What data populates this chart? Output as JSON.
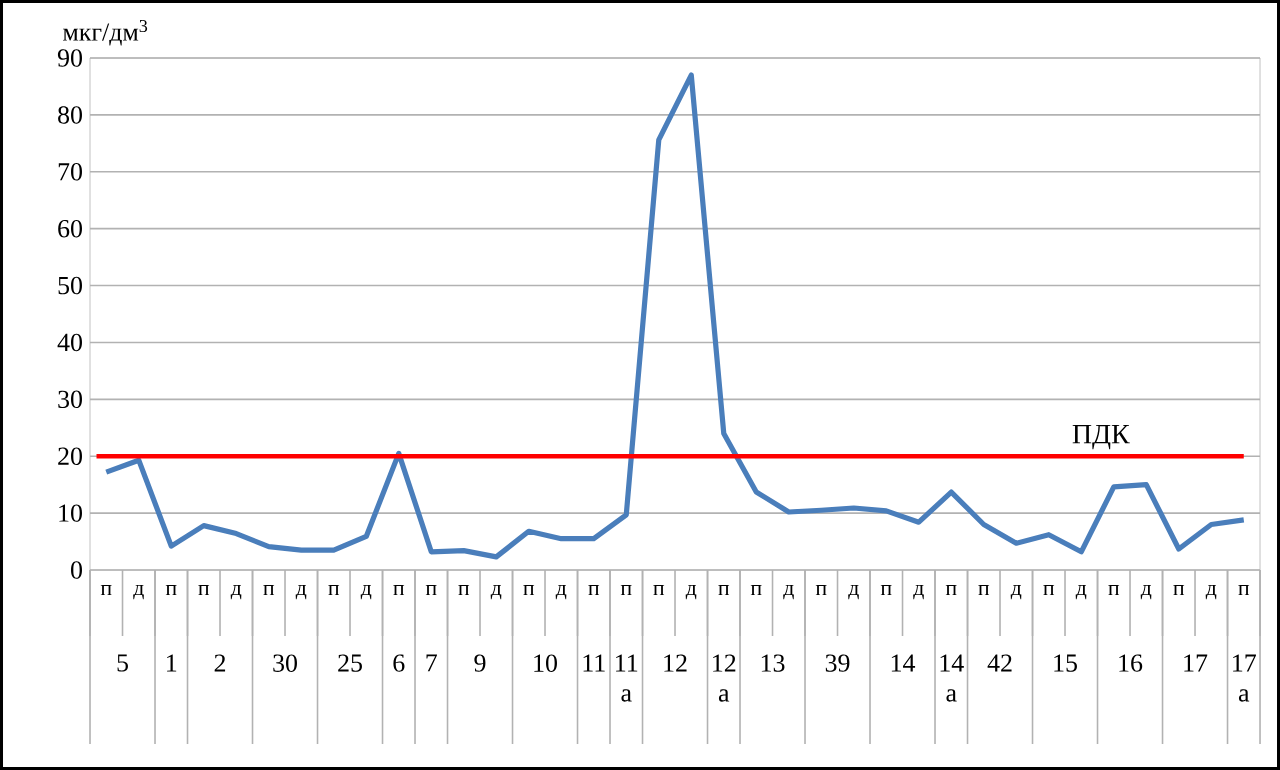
{
  "chart_data": {
    "type": "line",
    "ylabel": "мкг/дм$^{3}$",
    "categories": [
      "п",
      "д",
      "п",
      "п",
      "д",
      "п",
      "д",
      "п",
      "д",
      "п",
      "п",
      "п",
      "д",
      "п",
      "д",
      "п",
      "п",
      "п",
      "д",
      "п",
      "п",
      "д",
      "п",
      "д",
      "п",
      "д",
      "п",
      "п",
      "д",
      "п",
      "д",
      "п",
      "д",
      "п",
      "д",
      "п"
    ],
    "annotations": [
      "5",
      "1",
      "2",
      "30",
      "25",
      "6",
      "7",
      "9",
      "10",
      "11",
      "11 а",
      "12",
      "12 а",
      "13",
      "39",
      "14",
      "14 а",
      "42",
      "15",
      "16",
      "17",
      "17 а"
    ],
    "series": [
      {
        "color": "#4a7ebb",
        "values": [
          17.2,
          19.3,
          4.2,
          7.8,
          6.4,
          4.1,
          3.5,
          3.5,
          5.9,
          20.5,
          3.2,
          3.4,
          2.3,
          6.8,
          5.5,
          5.5,
          9.7,
          75.6,
          87.0,
          24.0,
          13.7,
          10.2,
          10.5,
          10.9,
          10.4,
          8.4,
          13.7,
          8.0,
          4.7,
          6.2,
          3.2,
          14.6,
          15.0,
          3.7,
          8.0,
          8.8
        ]
      }
    ],
    "ylim": [
      0,
      90
    ],
    "yticks": [
      0,
      10,
      20,
      30,
      40,
      50,
      60,
      70,
      80,
      90
    ],
    "grid": "y",
    "marker": "none",
    "line_style": "solid",
    "ref_lines": [
      {
        "axis": "y",
        "value": 20,
        "label": "ПДК",
        "color": "#ff0000"
      }
    ]
  }
}
